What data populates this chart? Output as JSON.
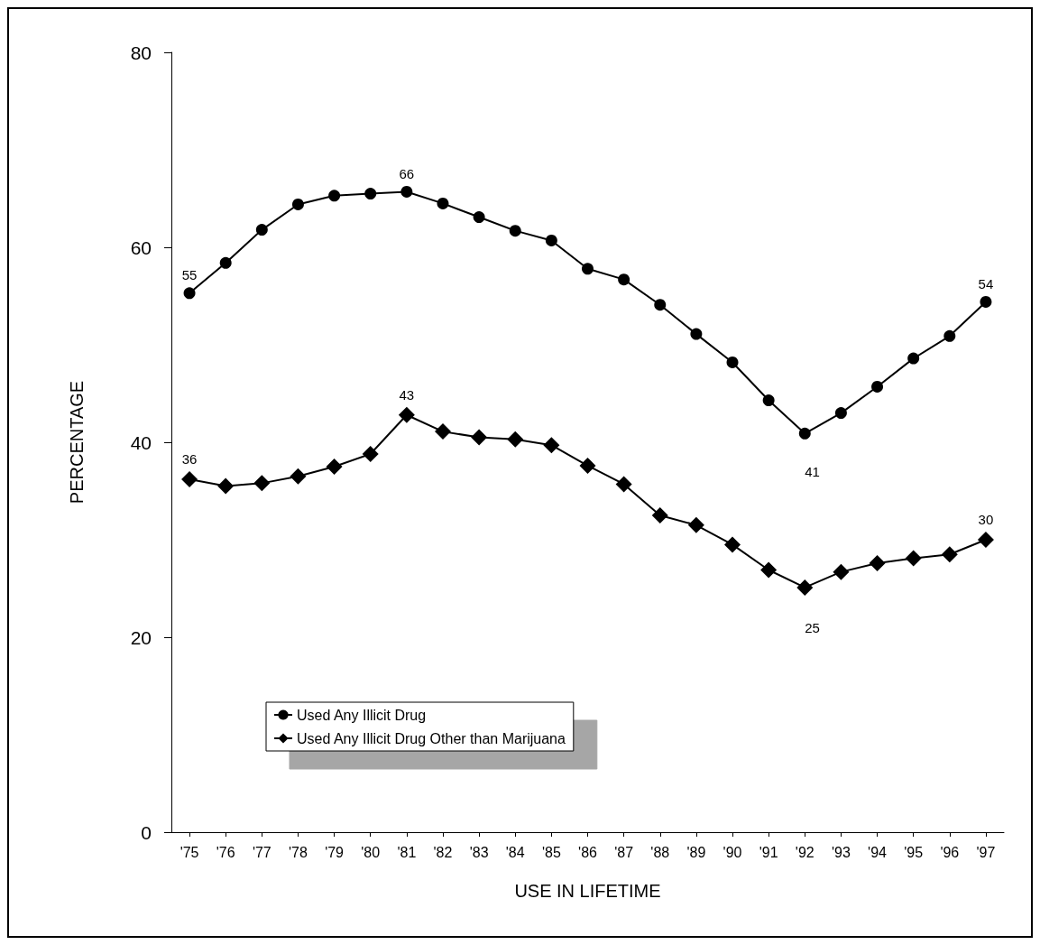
{
  "chart_data": {
    "type": "line",
    "xlabel": "USE IN LIFETIME",
    "ylabel": "PERCENTAGE",
    "categories": [
      "'75",
      "'76",
      "'77",
      "'78",
      "'79",
      "'80",
      "'81",
      "'82",
      "'83",
      "'84",
      "'85",
      "'86",
      "'87",
      "'88",
      "'89",
      "'90",
      "'91",
      "'92",
      "'93",
      "'94",
      "'95",
      "'96",
      "'97"
    ],
    "series": [
      {
        "name": "Used Any Illicit Drug",
        "color": "#000000",
        "marker": "circle",
        "values": [
          55.3,
          58.4,
          61.8,
          64.4,
          65.3,
          65.5,
          65.7,
          64.5,
          63.1,
          61.7,
          60.7,
          57.8,
          56.7,
          54.1,
          51.1,
          48.2,
          44.3,
          40.9,
          43.0,
          45.7,
          48.6,
          50.9,
          54.4
        ],
        "value_labels": [
          "55",
          null,
          null,
          null,
          null,
          null,
          "66",
          null,
          null,
          null,
          null,
          null,
          null,
          null,
          null,
          null,
          null,
          "41",
          null,
          null,
          null,
          null,
          "54"
        ]
      },
      {
        "name": "Used Any Illicit Drug Other than Marijuana",
        "color": "#000000",
        "marker": "diamond",
        "values": [
          36.2,
          35.5,
          35.8,
          36.5,
          37.5,
          38.8,
          42.8,
          41.1,
          40.5,
          40.3,
          39.7,
          37.6,
          35.7,
          32.5,
          31.5,
          29.5,
          26.9,
          25.1,
          26.7,
          27.6,
          28.1,
          28.5,
          30.0
        ],
        "value_labels": [
          "36",
          null,
          null,
          null,
          null,
          null,
          "43",
          null,
          null,
          null,
          null,
          null,
          null,
          null,
          null,
          null,
          null,
          "25",
          null,
          null,
          null,
          null,
          "30"
        ]
      }
    ],
    "ylim": [
      0,
      80
    ],
    "yticks": [
      0,
      20,
      40,
      60,
      80
    ],
    "grid": false,
    "legend": "bottom left",
    "line_style": "solid"
  }
}
